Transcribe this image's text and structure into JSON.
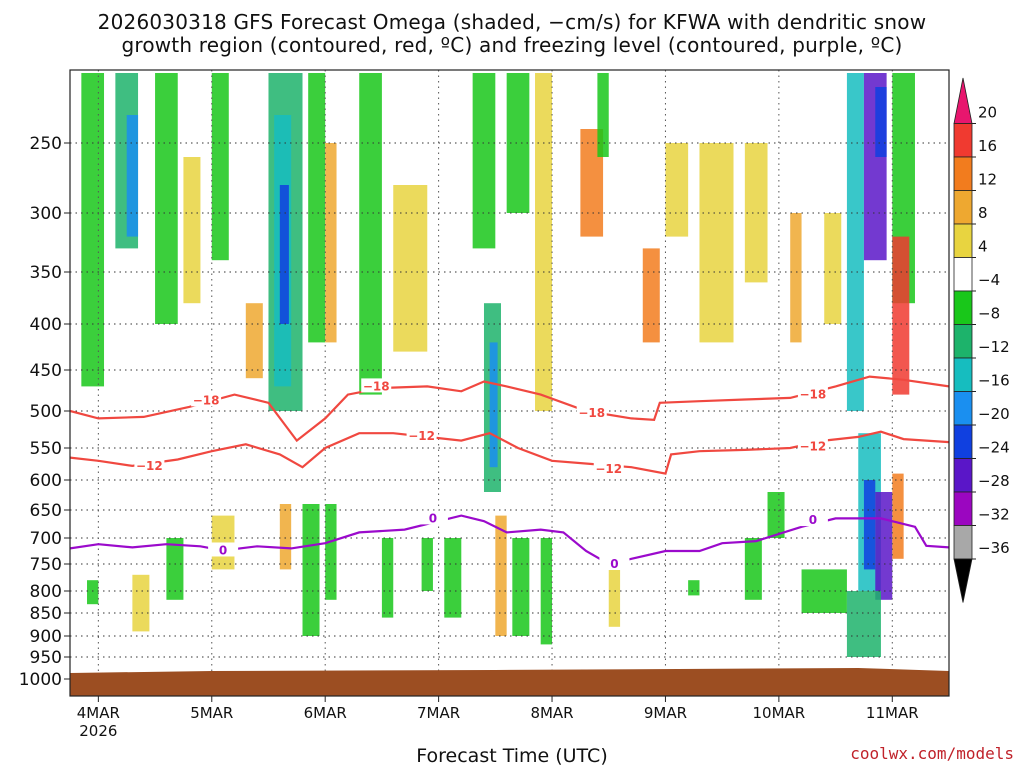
{
  "chart_data": {
    "type": "heatmap",
    "title_line1": "2026030318 GFS Forecast Omega (shaded, −cm/s) for KFWA with dendritic snow",
    "title_line2": "growth region (contoured, red, ºC) and freezing level (contoured, purple, ºC)",
    "xlabel": "Forecast Time (UTC)",
    "ylabel": "",
    "credit": "coolwx.com/models",
    "x_start_day": 3.75,
    "x_end_day": 11.5,
    "x_ticks": [
      {
        "day": 4,
        "label": "4MAR",
        "sublabel": "2026"
      },
      {
        "day": 5,
        "label": "5MAR"
      },
      {
        "day": 6,
        "label": "6MAR"
      },
      {
        "day": 7,
        "label": "7MAR"
      },
      {
        "day": 8,
        "label": "8MAR"
      },
      {
        "day": 9,
        "label": "9MAR"
      },
      {
        "day": 10,
        "label": "10MAR"
      },
      {
        "day": 11,
        "label": "11MAR"
      }
    ],
    "y_ticks": [
      250,
      300,
      350,
      400,
      450,
      500,
      550,
      600,
      650,
      700,
      750,
      800,
      850,
      900,
      950,
      1000
    ],
    "ylim_hpa": [
      200,
      1010
    ],
    "colorbar": {
      "labels": [
        "20",
        "16",
        "12",
        "8",
        "4",
        "−4",
        "−8",
        "−12",
        "−16",
        "−20",
        "−24",
        "−28",
        "−32",
        "−36"
      ],
      "colors": [
        "#e8166e",
        "#f03a30",
        "#f27c1e",
        "#eea830",
        "#e8d440",
        "#ffffff",
        "#19c71a",
        "#1db36b",
        "#16bdbf",
        "#1a8ff0",
        "#1040e0",
        "#5a16c8",
        "#9b06c0",
        "#a8a8a8",
        "#000000"
      ]
    },
    "surface_color": "#9c4e22",
    "red_contour_color": "#f04840",
    "purple_contour_color": "#9b0acc",
    "contours": [
      {
        "name": "minus18",
        "label": "−18",
        "label_day": 4.95,
        "label_hpa": 487,
        "points": [
          [
            3.75,
            500
          ],
          [
            4.0,
            510
          ],
          [
            4.4,
            508
          ],
          [
            4.8,
            495
          ],
          [
            5.2,
            480
          ],
          [
            5.5,
            490
          ],
          [
            5.75,
            540
          ],
          [
            6.0,
            510
          ],
          [
            6.2,
            480
          ],
          [
            6.5,
            472
          ],
          [
            6.9,
            470
          ],
          [
            7.2,
            476
          ],
          [
            7.4,
            464
          ],
          [
            7.6,
            470
          ],
          [
            7.9,
            480
          ],
          [
            8.3,
            500
          ],
          [
            8.7,
            510
          ],
          [
            8.9,
            512
          ],
          [
            8.95,
            490
          ],
          [
            9.3,
            488
          ],
          [
            9.7,
            486
          ],
          [
            10.1,
            484
          ],
          [
            10.5,
            470
          ],
          [
            10.8,
            458
          ],
          [
            11.1,
            462
          ],
          [
            11.5,
            470
          ]
        ],
        "extra_labels": [
          {
            "label": "−18",
            "day": 6.45,
            "hpa": 470
          },
          {
            "label": "−18",
            "day": 8.35,
            "hpa": 503
          },
          {
            "label": "−18",
            "day": 10.3,
            "hpa": 480
          }
        ]
      },
      {
        "name": "minus12",
        "label": "−12",
        "label_day": 4.45,
        "label_hpa": 578,
        "points": [
          [
            3.75,
            565
          ],
          [
            4.0,
            570
          ],
          [
            4.3,
            578
          ],
          [
            4.7,
            568
          ],
          [
            5.0,
            555
          ],
          [
            5.3,
            545
          ],
          [
            5.6,
            560
          ],
          [
            5.8,
            580
          ],
          [
            6.0,
            550
          ],
          [
            6.3,
            530
          ],
          [
            6.6,
            530
          ],
          [
            6.9,
            535
          ],
          [
            7.2,
            540
          ],
          [
            7.45,
            530
          ],
          [
            7.7,
            550
          ],
          [
            8.0,
            570
          ],
          [
            8.35,
            575
          ],
          [
            8.7,
            580
          ],
          [
            9.0,
            590
          ],
          [
            9.05,
            560
          ],
          [
            9.3,
            555
          ],
          [
            9.7,
            553
          ],
          [
            10.1,
            550
          ],
          [
            10.4,
            540
          ],
          [
            10.7,
            535
          ],
          [
            10.9,
            528
          ],
          [
            11.1,
            538
          ],
          [
            11.5,
            542
          ]
        ],
        "extra_labels": [
          {
            "label": "−12",
            "day": 6.85,
            "hpa": 534
          },
          {
            "label": "−12",
            "day": 8.5,
            "hpa": 583
          },
          {
            "label": "−12",
            "day": 10.3,
            "hpa": 548
          }
        ]
      },
      {
        "name": "zero",
        "label": "0",
        "label_day": 5.1,
        "label_hpa": 724,
        "purple": true,
        "points": [
          [
            3.75,
            720
          ],
          [
            4.0,
            712
          ],
          [
            4.3,
            718
          ],
          [
            4.6,
            712
          ],
          [
            4.9,
            716
          ],
          [
            5.1,
            724
          ],
          [
            5.4,
            716
          ],
          [
            5.7,
            720
          ],
          [
            6.0,
            710
          ],
          [
            6.3,
            690
          ],
          [
            6.7,
            685
          ],
          [
            7.0,
            670
          ],
          [
            7.2,
            660
          ],
          [
            7.4,
            670
          ],
          [
            7.6,
            690
          ],
          [
            7.9,
            685
          ],
          [
            8.1,
            690
          ],
          [
            8.3,
            725
          ],
          [
            8.5,
            750
          ],
          [
            8.7,
            740
          ],
          [
            9.0,
            725
          ],
          [
            9.3,
            725
          ],
          [
            9.5,
            710
          ],
          [
            9.8,
            706
          ],
          [
            10.2,
            680
          ],
          [
            10.5,
            665
          ],
          [
            10.9,
            665
          ],
          [
            11.2,
            680
          ],
          [
            11.3,
            715
          ],
          [
            11.5,
            718
          ]
        ],
        "extra_labels": [
          {
            "label": "0",
            "day": 6.95,
            "hpa": 665
          },
          {
            "label": "0",
            "day": 8.55,
            "hpa": 750
          },
          {
            "label": "0",
            "day": 10.3,
            "hpa": 668
          }
        ]
      }
    ]
  }
}
